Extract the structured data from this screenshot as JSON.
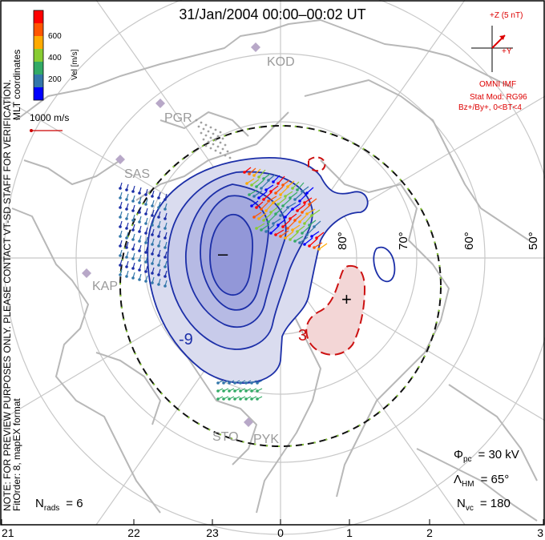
{
  "title": "31/Jan/2004  00:00–00:02  UT",
  "side_note_line1": "NOTE: FOR PREVIEW PURPOSES ONLY. PLEASE CONTACT VT-SD STAFF FOR VERIFICATION.",
  "side_note_line2": "FitOrder: 8,  mapEX format",
  "coord_label": "MLT coordinates",
  "colorbar": {
    "label": "Vel [m/s]",
    "ticks": [
      "600",
      "400",
      "200"
    ],
    "colors": [
      "#ff0000",
      "#ff6600",
      "#ffaa00",
      "#88cc33",
      "#33aa66",
      "#3377aa",
      "#0000ff"
    ]
  },
  "ref_vector_label": "1000 m/s",
  "imf": {
    "z_label": "+Z (5 nT)",
    "y_label": "+Y",
    "source": "OMNI IMF",
    "model_line1": "Stat Mod: RG96",
    "model_line2": "Bz+/By+, 0<BT<4",
    "color": "#dd0000"
  },
  "stations": [
    "KOD",
    "PGR",
    "SAS",
    "KAP",
    "STO",
    "PYK"
  ],
  "lat_labels": [
    "80°",
    "70°",
    "60°",
    "50°"
  ],
  "contour_labels": {
    "neg": "-9",
    "pos": "3",
    "min_sign": "–",
    "max_sign": "+"
  },
  "stats": {
    "phi_symbol": "Φ",
    "phi_sub": "pc",
    "phi_value": "= 30 kV",
    "lambda_symbol": "Λ",
    "lambda_sub": "HM",
    "lambda_value": "= 65°",
    "nvc_symbol": "N",
    "nvc_sub": "vc",
    "nvc_value": "= 180",
    "nrads_symbol": "N",
    "nrads_sub": "rads",
    "nrads_value": "= 6"
  },
  "mlt_labels": [
    "21",
    "22",
    "23",
    "0",
    "1",
    "2",
    "3"
  ],
  "colors": {
    "negative_fill": "#d6d8ee",
    "negative_line": "#1c2fa8",
    "positive_fill": "#f3d6d6",
    "positive_line": "#cc1111",
    "land": "#bdbdbd",
    "grid": "#bfbfbf"
  }
}
